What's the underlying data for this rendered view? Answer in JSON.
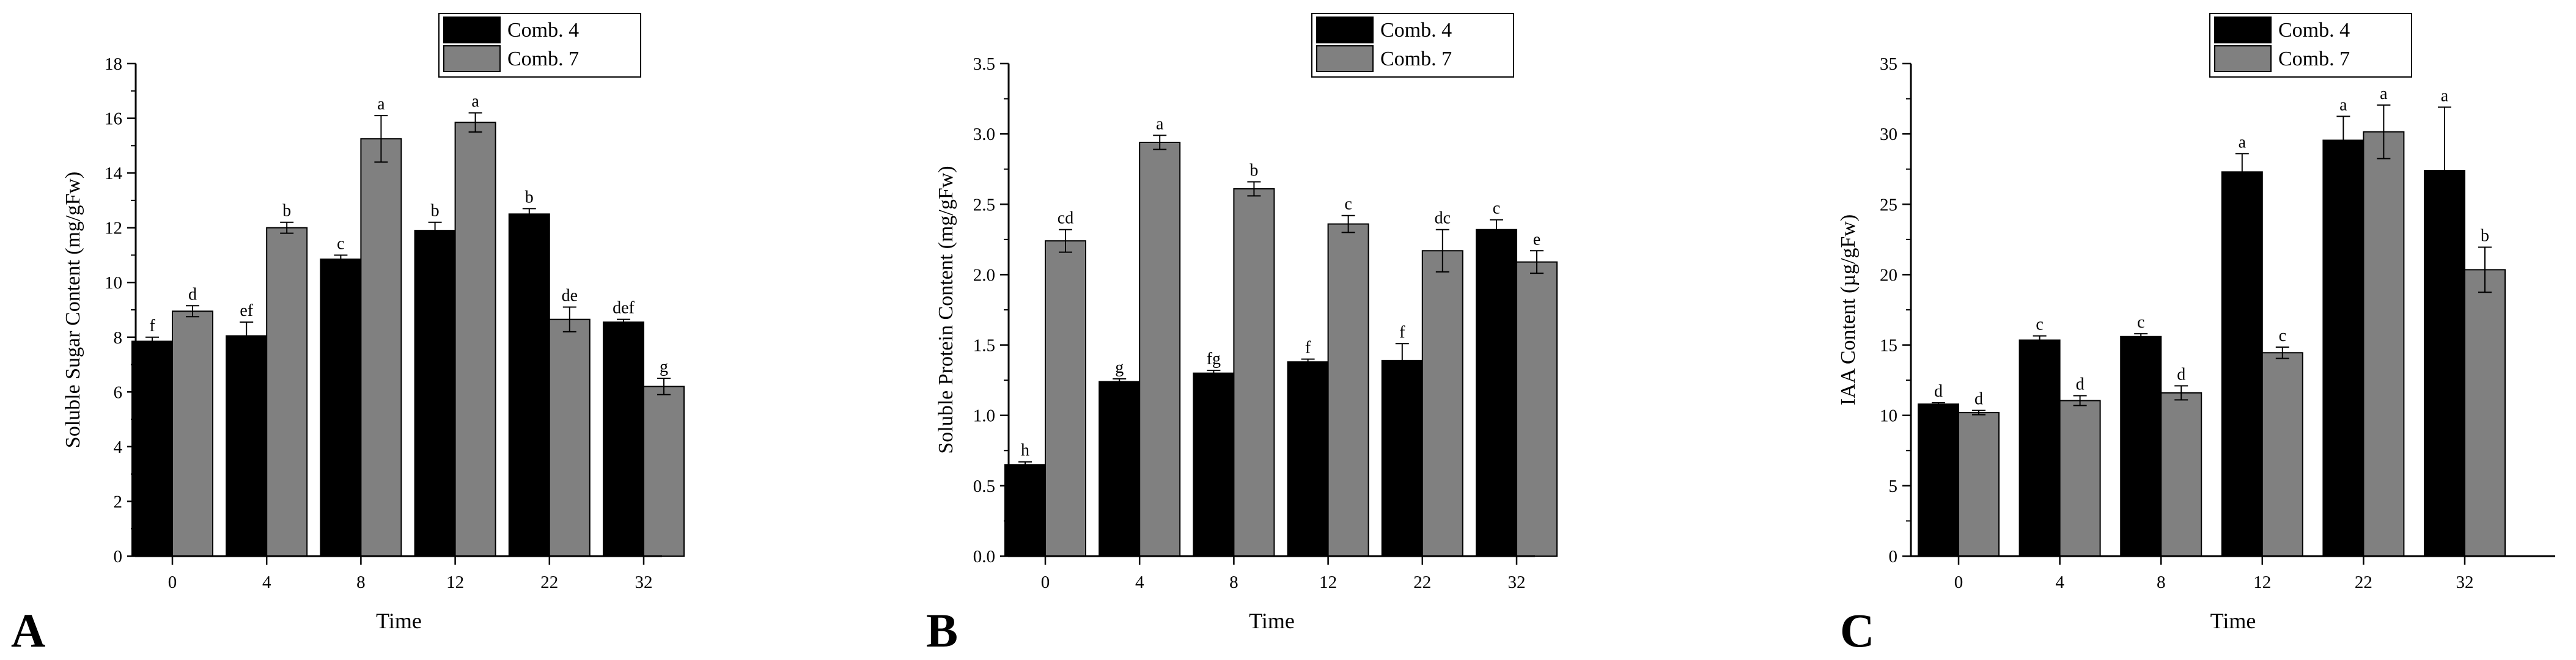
{
  "figure": {
    "legend_series": [
      "Comb. 4",
      "Comb. 7"
    ],
    "colors": {
      "comb4": "#000000",
      "comb7": "#808080",
      "axis": "#000000"
    }
  },
  "chart_data": [
    {
      "panel_label": "A",
      "type": "bar",
      "title": "",
      "xlabel": "Time",
      "ylabel": "Soluble Sugar Content (mg/gFw)",
      "ylim": [
        0,
        18
      ],
      "yticks": [
        "0",
        "2",
        "4",
        "6",
        "8",
        "10",
        "12",
        "14",
        "16",
        "18"
      ],
      "categories": [
        "0",
        "4",
        "8",
        "12",
        "22",
        "32"
      ],
      "legend_position": "top-right",
      "series": [
        {
          "name": "Comb. 4",
          "values": [
            7.85,
            8.05,
            10.85,
            11.9,
            12.5,
            8.55
          ],
          "errors": [
            0.15,
            0.5,
            0.15,
            0.3,
            0.2,
            0.1
          ],
          "letters": [
            "f",
            "ef",
            "c",
            "b",
            "b",
            "def"
          ]
        },
        {
          "name": "Comb. 7",
          "values": [
            8.95,
            12.0,
            15.25,
            15.85,
            8.65,
            6.2
          ],
          "errors": [
            0.2,
            0.2,
            0.85,
            0.35,
            0.45,
            0.3
          ],
          "letters": [
            "d",
            "b",
            "a",
            "a",
            "de",
            "g"
          ]
        }
      ]
    },
    {
      "panel_label": "B",
      "type": "bar",
      "title": "",
      "xlabel": "Time",
      "ylabel": "Soluble Protein Content (mg/gFw)",
      "ylim": [
        0,
        3.5
      ],
      "yticks": [
        "0.0",
        "0.5",
        "1.0",
        "1.5",
        "2.0",
        "2.5",
        "3.0",
        "3.5"
      ],
      "categories": [
        "0",
        "4",
        "8",
        "12",
        "22",
        "32"
      ],
      "legend_position": "top-right",
      "series": [
        {
          "name": "Comb. 4",
          "values": [
            0.65,
            1.24,
            1.3,
            1.38,
            1.39,
            2.32
          ],
          "errors": [
            0.02,
            0.02,
            0.02,
            0.02,
            0.12,
            0.07
          ],
          "letters": [
            "h",
            "g",
            "fg",
            "f",
            "f",
            "c"
          ]
        },
        {
          "name": "Comb. 7",
          "values": [
            2.24,
            2.94,
            2.61,
            2.36,
            2.17,
            2.09
          ],
          "errors": [
            0.08,
            0.05,
            0.05,
            0.06,
            0.15,
            0.08
          ],
          "letters": [
            "cd",
            "a",
            "b",
            "c",
            "dc",
            "e"
          ]
        }
      ]
    },
    {
      "panel_label": "C",
      "type": "bar",
      "title": "",
      "xlabel": "Time",
      "ylabel": "IAA Content (µg/gFw)",
      "ylim": [
        0,
        35
      ],
      "yticks": [
        "0",
        "5",
        "10",
        "15",
        "20",
        "25",
        "30",
        "35"
      ],
      "categories": [
        "0",
        "4",
        "8",
        "12",
        "22",
        "32"
      ],
      "legend_position": "top-right",
      "series": [
        {
          "name": "Comb. 4",
          "values": [
            10.8,
            15.35,
            15.6,
            27.3,
            29.55,
            27.4
          ],
          "errors": [
            0.1,
            0.3,
            0.2,
            1.3,
            1.7,
            4.5
          ],
          "letters": [
            "d",
            "c",
            "c",
            "a",
            "a",
            "a"
          ]
        },
        {
          "name": "Comb. 7",
          "values": [
            10.2,
            11.05,
            11.6,
            14.45,
            30.15,
            20.35
          ],
          "errors": [
            0.15,
            0.35,
            0.5,
            0.4,
            1.9,
            1.6
          ],
          "letters": [
            "d",
            "d",
            "d",
            "c",
            "a",
            "b"
          ]
        }
      ]
    }
  ]
}
